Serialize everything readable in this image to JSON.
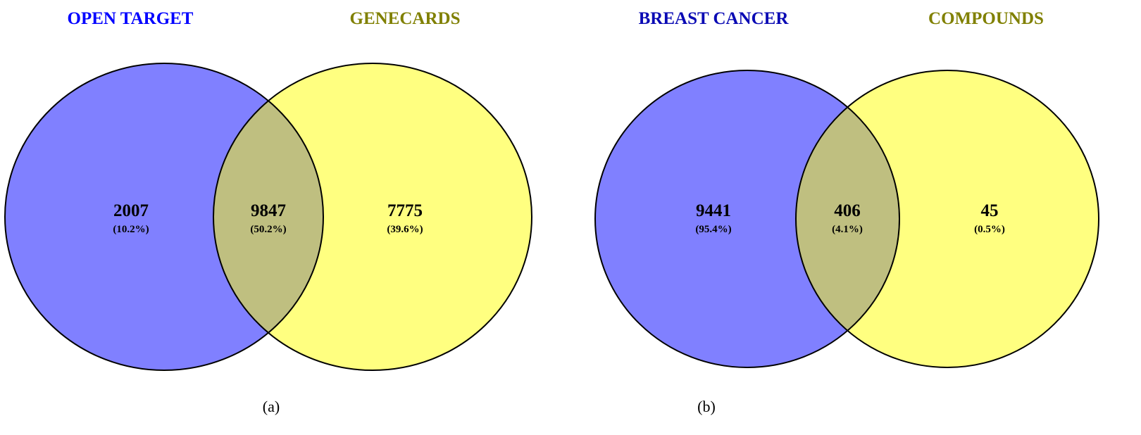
{
  "colors": {
    "set_a_fill": "#8080ff",
    "set_b_fill": "#ffff80",
    "overlap_fill": "#bfbf80",
    "set_a_title": "#0000ff",
    "set_a_title_b": "#0a0ab4",
    "set_b_title": "#808000",
    "outline": "#000000"
  },
  "panels": [
    {
      "label": "(a)",
      "sets": [
        {
          "title": "OPEN TARGET",
          "only_count": "2007",
          "only_pct": "(10.2%)"
        },
        {
          "title": "GENECARDS",
          "only_count": "7775",
          "only_pct": "(39.6%)"
        }
      ],
      "overlap": {
        "count": "9847",
        "pct": "(50.2%)"
      }
    },
    {
      "label": "(b)",
      "sets": [
        {
          "title": "BREAST CANCER",
          "only_count": "9441",
          "only_pct": "(95.4%)"
        },
        {
          "title": "COMPOUNDS",
          "only_count": "45",
          "only_pct": "(0.5%)"
        }
      ],
      "overlap": {
        "count": "406",
        "pct": "(4.1%)"
      }
    }
  ]
}
